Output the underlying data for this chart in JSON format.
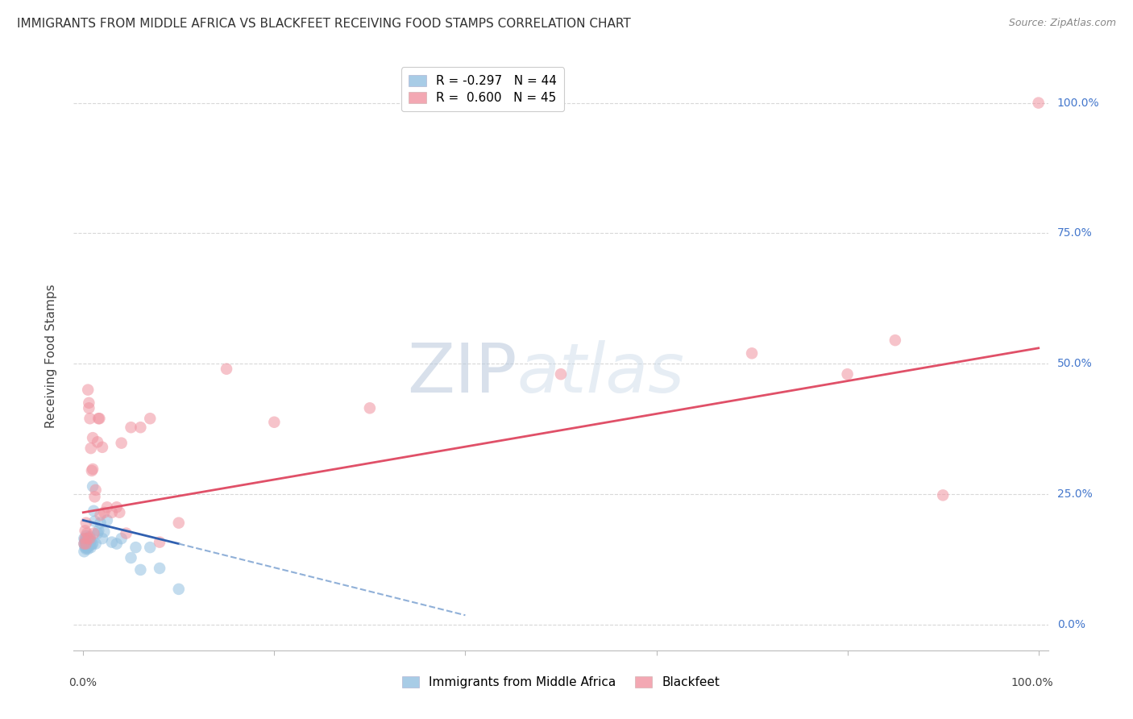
{
  "title": "IMMIGRANTS FROM MIDDLE AFRICA VS BLACKFEET RECEIVING FOOD STAMPS CORRELATION CHART",
  "source": "Source: ZipAtlas.com",
  "ylabel": "Receiving Food Stamps",
  "series1_label": "Immigrants from Middle Africa",
  "series2_label": "Blackfeet",
  "series1_color": "#92c0e0",
  "series2_color": "#f093a0",
  "trendline1_color": "#3060b0",
  "trendline2_color": "#e05068",
  "trendline1_dashed_color": "#90b0d8",
  "legend_entry1": "R = -0.297   N = 44",
  "legend_entry2": "R =  0.600   N = 45",
  "watermark_text": "ZIPatlas",
  "background_color": "#ffffff",
  "grid_color": "#d8d8d8",
  "ytick_values": [
    0.0,
    0.25,
    0.5,
    0.75,
    1.0
  ],
  "ytick_labels": [
    "0.0%",
    "25.0%",
    "50.0%",
    "75.0%",
    "100.0%"
  ],
  "xlim": [
    -0.01,
    1.01
  ],
  "ylim": [
    -0.05,
    1.08
  ],
  "series1_x": [
    0.001,
    0.001,
    0.001,
    0.002,
    0.002,
    0.002,
    0.002,
    0.003,
    0.003,
    0.003,
    0.003,
    0.004,
    0.004,
    0.004,
    0.005,
    0.005,
    0.005,
    0.006,
    0.006,
    0.007,
    0.007,
    0.008,
    0.008,
    0.009,
    0.01,
    0.01,
    0.011,
    0.012,
    0.013,
    0.015,
    0.016,
    0.018,
    0.02,
    0.022,
    0.025,
    0.03,
    0.035,
    0.04,
    0.05,
    0.055,
    0.06,
    0.07,
    0.08,
    0.1
  ],
  "series1_y": [
    0.155,
    0.14,
    0.165,
    0.158,
    0.148,
    0.162,
    0.152,
    0.155,
    0.145,
    0.16,
    0.17,
    0.152,
    0.16,
    0.148,
    0.155,
    0.165,
    0.145,
    0.15,
    0.162,
    0.155,
    0.168,
    0.148,
    0.16,
    0.155,
    0.265,
    0.155,
    0.218,
    0.198,
    0.155,
    0.175,
    0.18,
    0.195,
    0.165,
    0.178,
    0.2,
    0.158,
    0.155,
    0.165,
    0.128,
    0.148,
    0.105,
    0.148,
    0.108,
    0.068
  ],
  "series2_x": [
    0.001,
    0.002,
    0.002,
    0.003,
    0.003,
    0.004,
    0.005,
    0.005,
    0.006,
    0.006,
    0.007,
    0.007,
    0.008,
    0.009,
    0.01,
    0.01,
    0.011,
    0.012,
    0.013,
    0.015,
    0.016,
    0.017,
    0.018,
    0.02,
    0.022,
    0.025,
    0.03,
    0.035,
    0.038,
    0.04,
    0.045,
    0.05,
    0.06,
    0.07,
    0.08,
    0.1,
    0.15,
    0.2,
    0.3,
    0.5,
    0.7,
    0.8,
    0.85,
    0.9,
    1.0
  ],
  "series2_y": [
    0.155,
    0.18,
    0.165,
    0.155,
    0.195,
    0.175,
    0.45,
    0.165,
    0.425,
    0.415,
    0.395,
    0.165,
    0.338,
    0.295,
    0.358,
    0.298,
    0.175,
    0.245,
    0.258,
    0.35,
    0.395,
    0.395,
    0.21,
    0.34,
    0.215,
    0.225,
    0.215,
    0.225,
    0.215,
    0.348,
    0.175,
    0.378,
    0.378,
    0.395,
    0.158,
    0.195,
    0.49,
    0.388,
    0.415,
    0.48,
    0.52,
    0.48,
    0.545,
    0.248,
    1.0
  ],
  "trendline2_x_start": 0.0,
  "trendline2_x_end": 1.0,
  "trendline2_y_start": 0.215,
  "trendline2_y_end": 0.53,
  "trendline1_solid_x_start": 0.0,
  "trendline1_solid_x_end": 0.1,
  "trendline1_y_at_0": 0.2,
  "trendline1_y_at_010": 0.155,
  "trendline1_dashed_x_end": 0.4,
  "trendline1_y_at_040": 0.018
}
